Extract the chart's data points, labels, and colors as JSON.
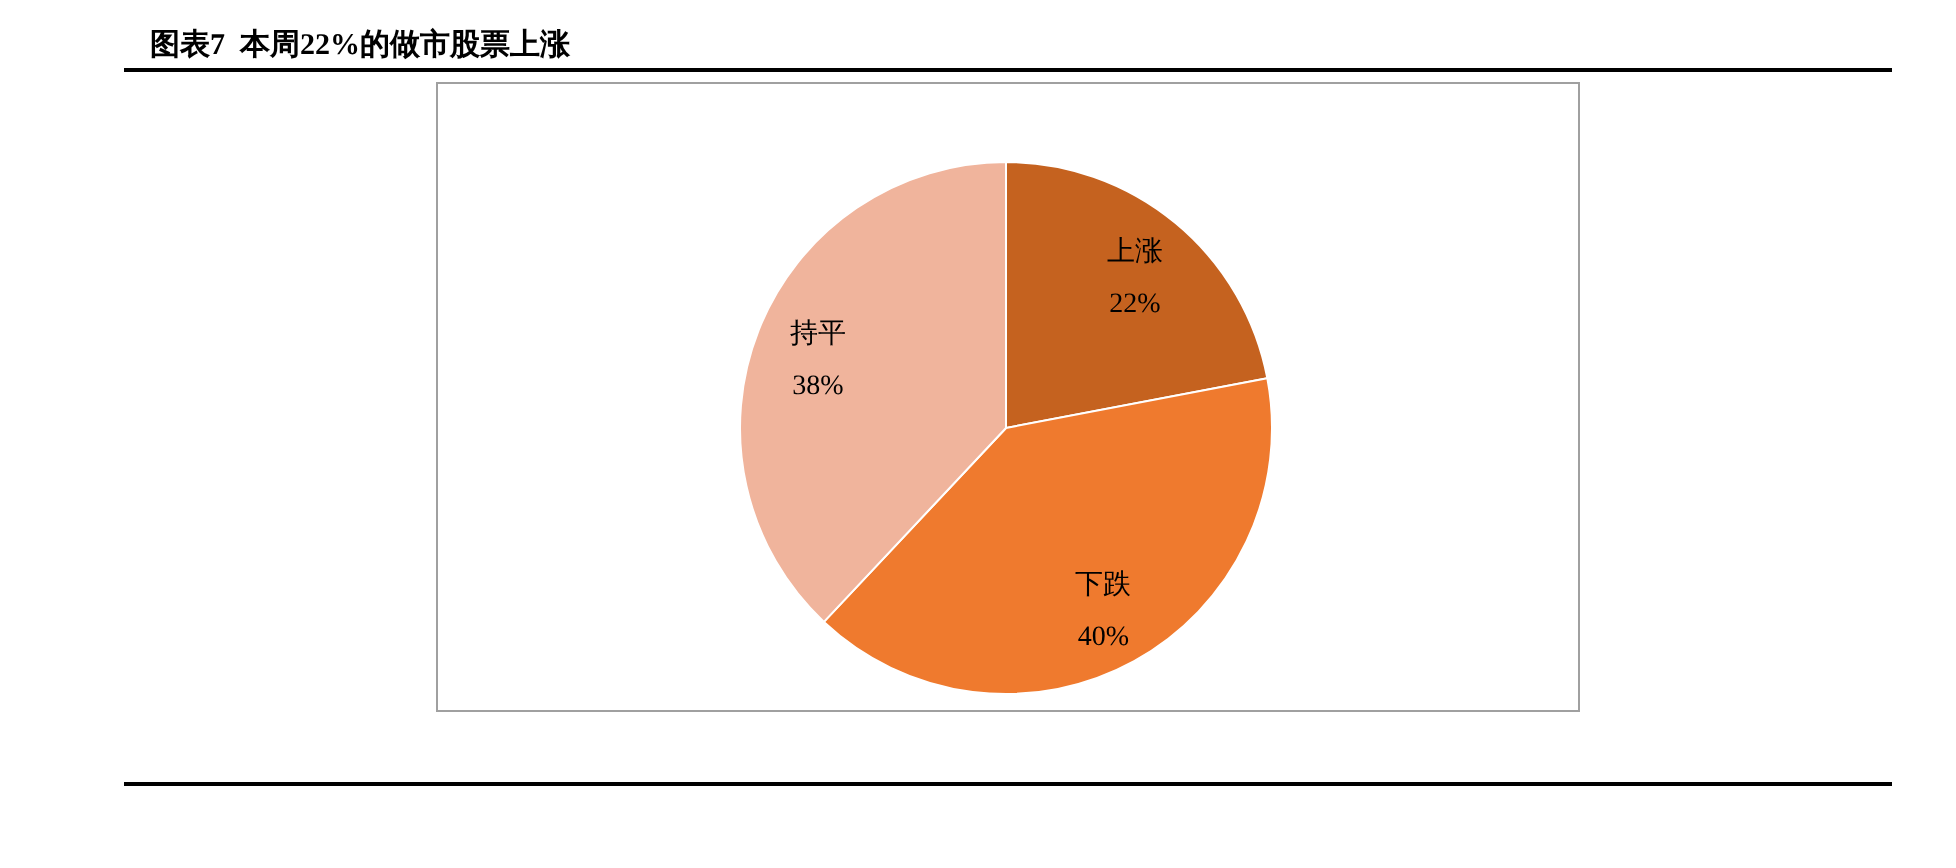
{
  "chart_data": {
    "type": "pie",
    "title": "图表7  本周22%的做市股票上涨",
    "categories": [
      "上涨",
      "下跌",
      "持平"
    ],
    "values": [
      22,
      40,
      38
    ],
    "colors": [
      "#c5621f",
      "#ef7a2e",
      "#f0b49c"
    ],
    "value_labels": [
      "22%",
      "40%",
      "38%"
    ]
  }
}
